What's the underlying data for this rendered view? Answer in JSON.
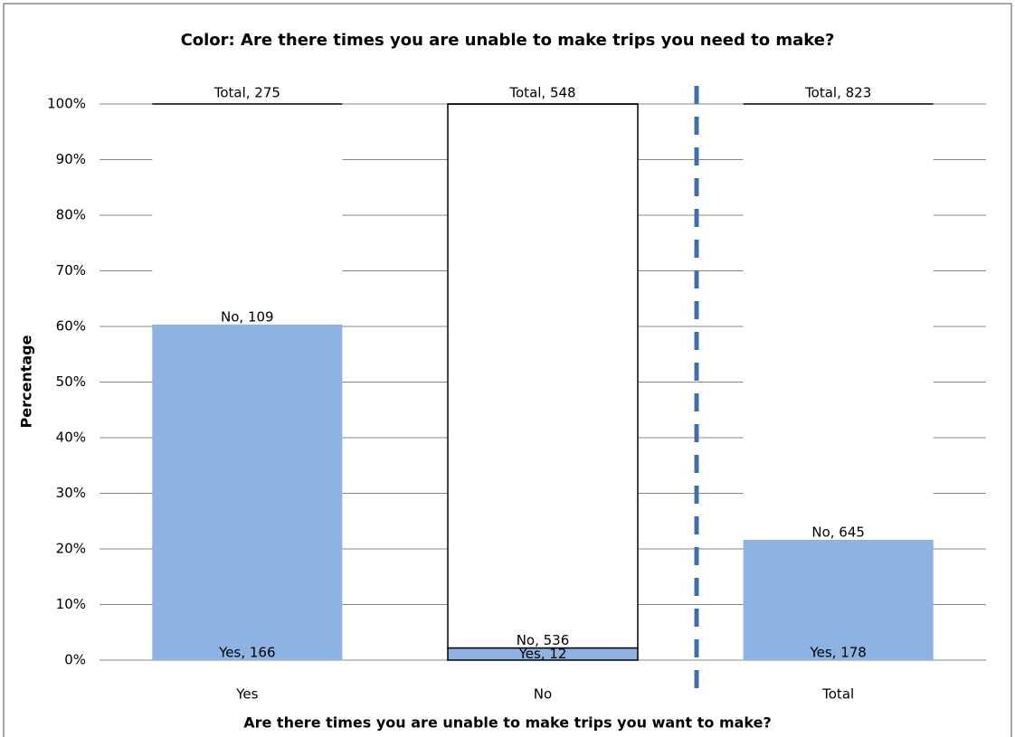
{
  "chart_data": {
    "type": "stacked_bar_percent",
    "title": "Color: Are there times you are unable to make trips you need to make?",
    "x_label": "Are there times you are unable to make trips you want to make?",
    "y_label": "Percentage",
    "categories": [
      "Yes",
      "No",
      "Total"
    ],
    "series": [
      {
        "name": "Yes",
        "color": "#8db3e2",
        "values": [
          166,
          12,
          178
        ],
        "value_labels": [
          "Yes, 166",
          "Yes, 12",
          "Yes, 178"
        ]
      },
      {
        "name": "No",
        "color": "#ffffff",
        "values": [
          109,
          536,
          645
        ],
        "value_labels": [
          "No, 109",
          "No, 536",
          "No, 645"
        ]
      }
    ],
    "total_labels": [
      "Total, 275",
      "Total, 548",
      "Total, 823"
    ],
    "ylim": [
      0,
      100
    ],
    "yticks": [
      {
        "value": 0,
        "label": "0%"
      },
      {
        "value": 10,
        "label": "10%"
      },
      {
        "value": 20,
        "label": "20%"
      },
      {
        "value": 30,
        "label": "30%"
      },
      {
        "value": 40,
        "label": "40%"
      },
      {
        "value": 50,
        "label": "50%"
      },
      {
        "value": 60,
        "label": "60%"
      },
      {
        "value": 70,
        "label": "70%"
      },
      {
        "value": 80,
        "label": "80%"
      },
      {
        "value": 90,
        "label": "90%"
      },
      {
        "value": 100,
        "label": "100%"
      }
    ],
    "grid": true
  }
}
